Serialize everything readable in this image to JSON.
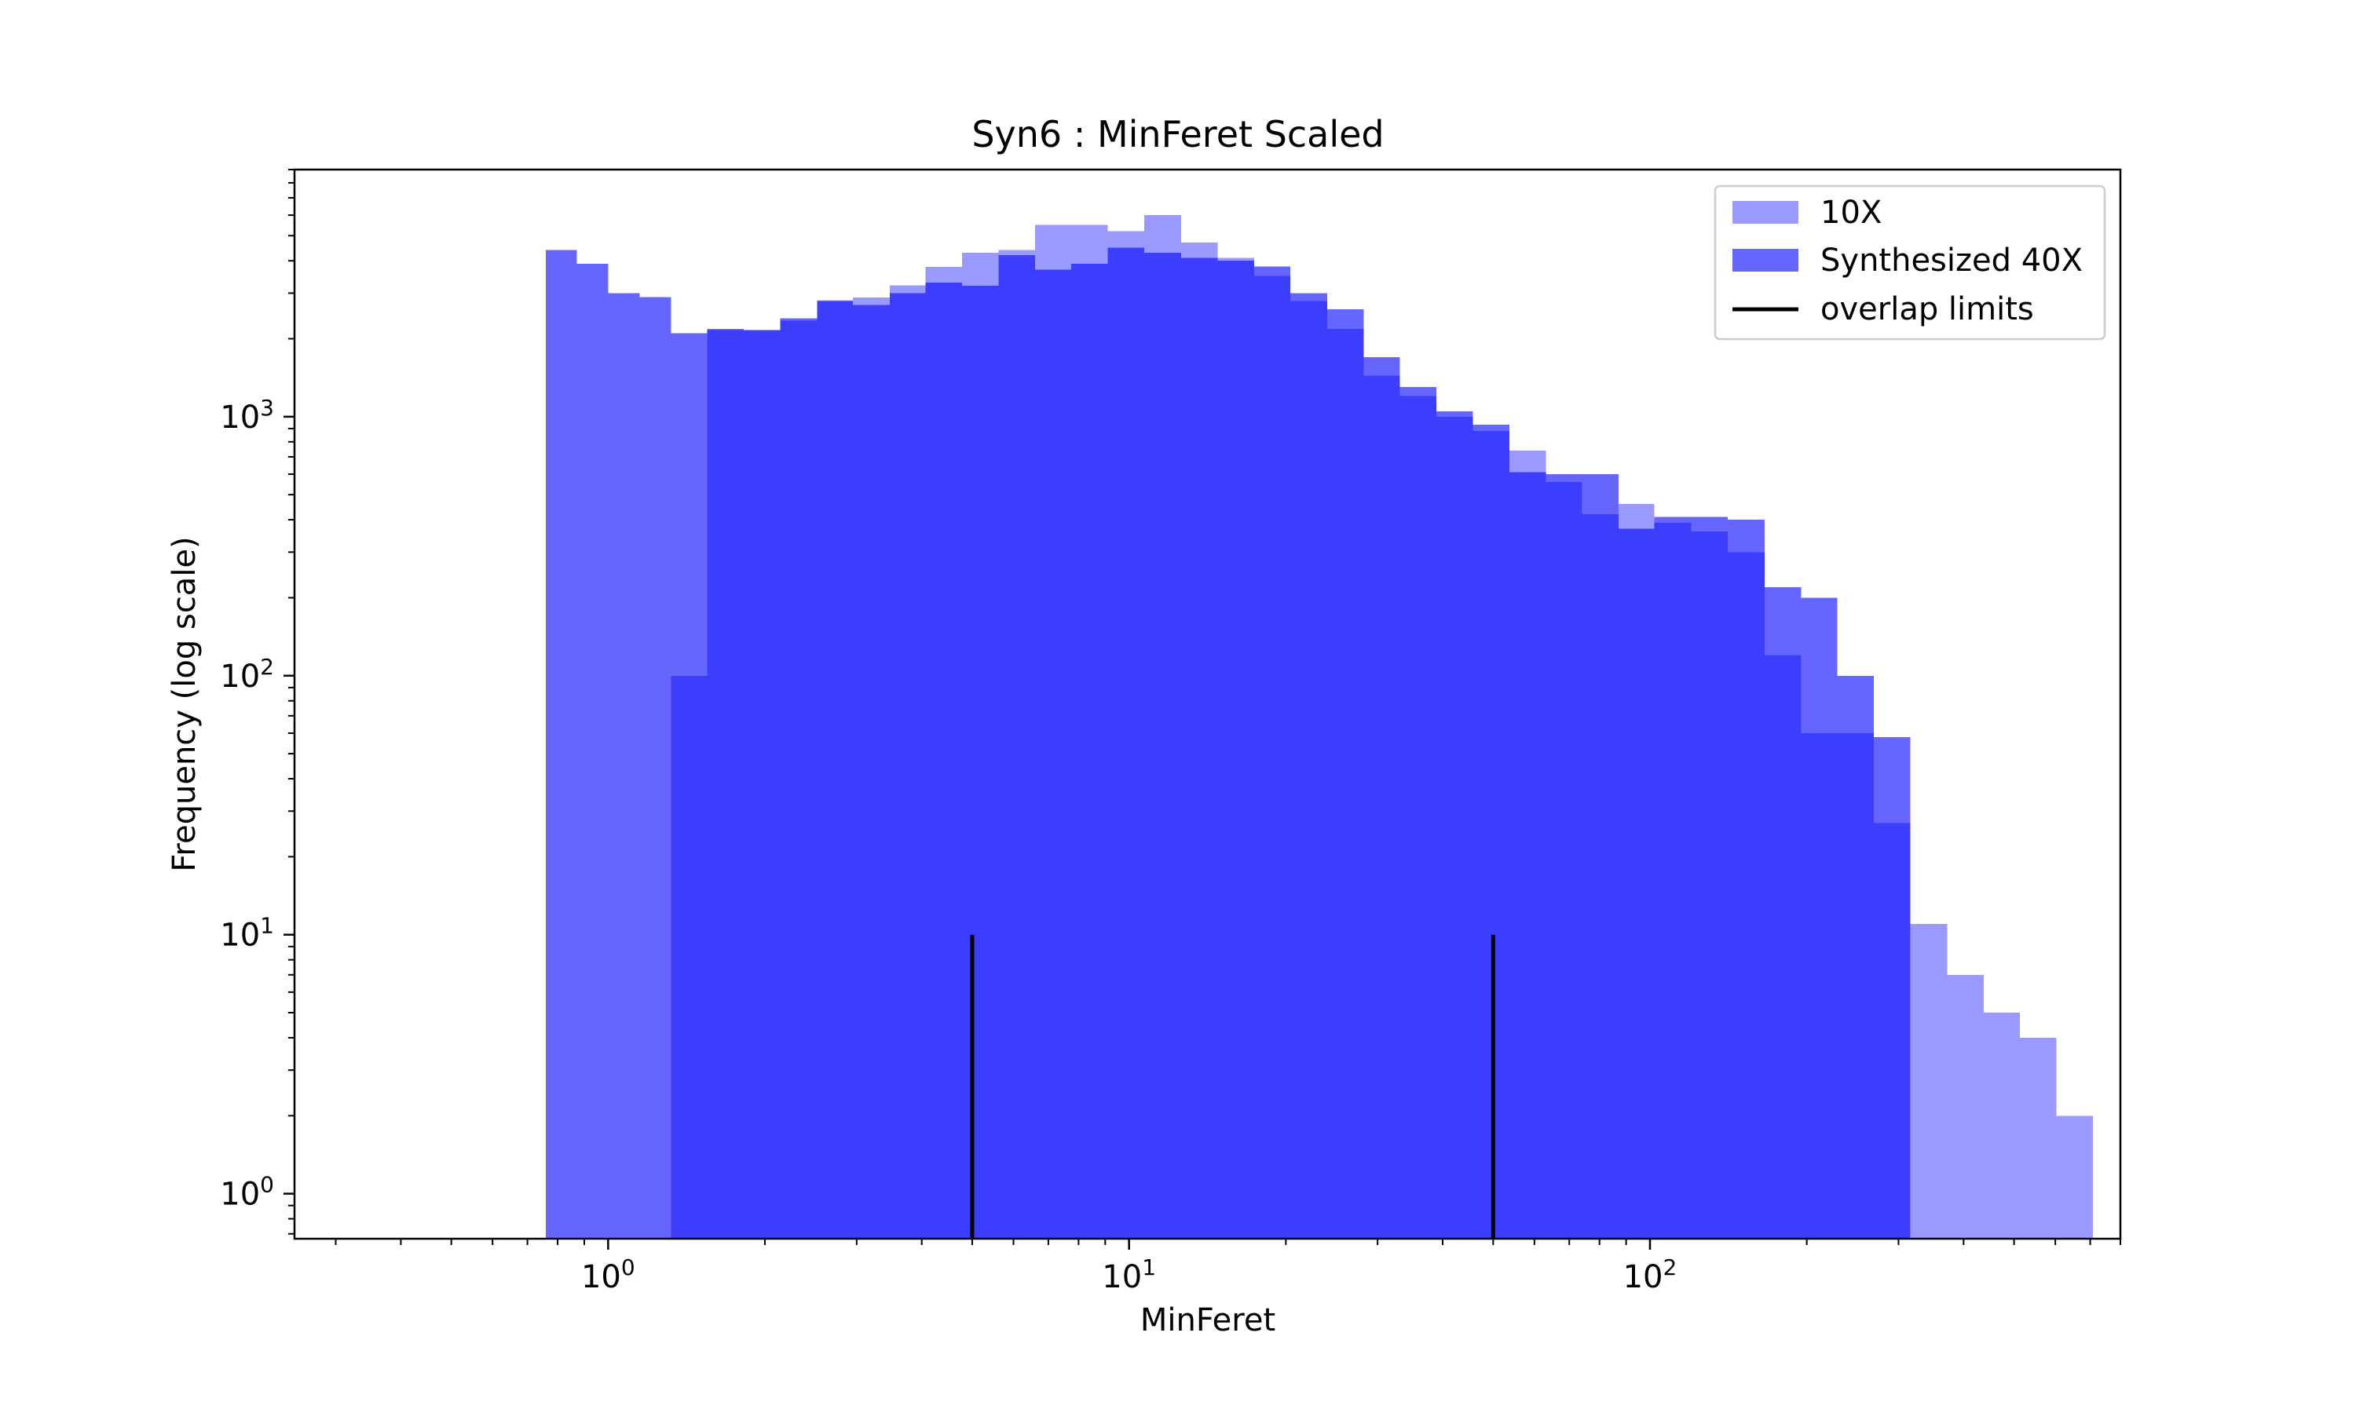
{
  "chart_data": {
    "type": "histogram",
    "title": "Syn6 : MinFeret Scaled",
    "xlabel": "MinFeret",
    "ylabel": "Frequency (log scale)",
    "xscale": "log",
    "yscale": "log",
    "xlim": [
      0.25,
      800
    ],
    "ylim": [
      0.67,
      9000
    ],
    "x_ticks": [
      {
        "value": 1,
        "base": "10",
        "exp": "0"
      },
      {
        "value": 10,
        "base": "10",
        "exp": "1"
      },
      {
        "value": 100,
        "base": "10",
        "exp": "2"
      }
    ],
    "y_ticks": [
      {
        "value": 1,
        "base": "10",
        "exp": "0"
      },
      {
        "value": 10,
        "base": "10",
        "exp": "1"
      },
      {
        "value": 100,
        "base": "10",
        "exp": "2"
      },
      {
        "value": 1000,
        "base": "10",
        "exp": "3"
      }
    ],
    "legend_position": "top-right",
    "grid": false,
    "series": [
      {
        "name": "10X",
        "color": "#9a9afe",
        "bins": [
          [
            1.32,
            1.55,
            100
          ],
          [
            1.55,
            1.82,
            2160
          ],
          [
            1.82,
            2.14,
            2170
          ],
          [
            2.14,
            2.52,
            2350
          ],
          [
            2.52,
            2.95,
            2820
          ],
          [
            2.95,
            3.47,
            2890
          ],
          [
            3.47,
            4.07,
            3210
          ],
          [
            4.07,
            4.78,
            3790
          ],
          [
            4.78,
            5.62,
            4300
          ],
          [
            5.62,
            6.6,
            4400
          ],
          [
            6.6,
            7.75,
            5500
          ],
          [
            7.75,
            9.1,
            5500
          ],
          [
            9.1,
            10.7,
            5200
          ],
          [
            10.7,
            12.6,
            6000
          ],
          [
            12.6,
            14.8,
            4700
          ],
          [
            14.8,
            17.4,
            4100
          ],
          [
            17.4,
            20.4,
            3500
          ],
          [
            20.4,
            24.0,
            2800
          ],
          [
            24.0,
            28.2,
            2180
          ],
          [
            28.2,
            33.1,
            1440
          ],
          [
            33.1,
            38.9,
            1200
          ],
          [
            38.9,
            45.7,
            1000
          ],
          [
            45.7,
            53.7,
            880
          ],
          [
            53.7,
            63.1,
            740
          ],
          [
            63.1,
            74.1,
            560
          ],
          [
            74.1,
            87.1,
            420
          ],
          [
            87.1,
            102,
            460
          ],
          [
            102,
            120,
            390
          ],
          [
            120,
            141,
            360
          ],
          [
            141,
            166,
            300
          ],
          [
            166,
            195,
            120
          ],
          [
            195,
            229,
            60
          ],
          [
            229,
            269,
            60
          ],
          [
            269,
            316,
            27
          ],
          [
            316,
            372,
            11
          ],
          [
            372,
            437,
            7
          ],
          [
            437,
            513,
            5
          ],
          [
            513,
            603,
            4
          ],
          [
            603,
            708,
            2
          ]
        ]
      },
      {
        "name": "Synthesized 40X",
        "color": "#6666fe",
        "bins": [
          [
            0.759,
            0.871,
            4400
          ],
          [
            0.871,
            1.0,
            3900
          ],
          [
            1.0,
            1.15,
            3000
          ],
          [
            1.15,
            1.32,
            2900
          ],
          [
            1.32,
            1.55,
            2100
          ],
          [
            1.55,
            1.82,
            2180
          ],
          [
            1.82,
            2.14,
            2150
          ],
          [
            2.14,
            2.52,
            2400
          ],
          [
            2.52,
            2.95,
            2800
          ],
          [
            2.95,
            3.47,
            2700
          ],
          [
            3.47,
            4.07,
            3000
          ],
          [
            4.07,
            4.78,
            3300
          ],
          [
            4.78,
            5.62,
            3200
          ],
          [
            5.62,
            6.6,
            4200
          ],
          [
            6.6,
            7.75,
            3700
          ],
          [
            7.75,
            9.1,
            3900
          ],
          [
            9.1,
            10.7,
            4500
          ],
          [
            10.7,
            12.6,
            4300
          ],
          [
            12.6,
            14.8,
            4100
          ],
          [
            14.8,
            17.4,
            4000
          ],
          [
            17.4,
            20.4,
            3800
          ],
          [
            20.4,
            24.0,
            3000
          ],
          [
            24.0,
            28.2,
            2600
          ],
          [
            28.2,
            33.1,
            1700
          ],
          [
            33.1,
            38.9,
            1300
          ],
          [
            38.9,
            45.7,
            1050
          ],
          [
            45.7,
            53.7,
            930
          ],
          [
            53.7,
            63.1,
            610
          ],
          [
            63.1,
            74.1,
            600
          ],
          [
            74.1,
            87.1,
            600
          ],
          [
            87.1,
            102,
            370
          ],
          [
            102,
            120,
            410
          ],
          [
            120,
            141,
            410
          ],
          [
            141,
            166,
            400
          ],
          [
            166,
            195,
            220
          ],
          [
            195,
            229,
            200
          ],
          [
            229,
            269,
            100
          ],
          [
            269,
            316,
            58
          ]
        ]
      }
    ],
    "overlap_color": "#3d3dfe",
    "overlap_limits": {
      "name": "overlap limits",
      "color": "#000000",
      "x": [
        5,
        50
      ],
      "y_top": 10
    }
  }
}
